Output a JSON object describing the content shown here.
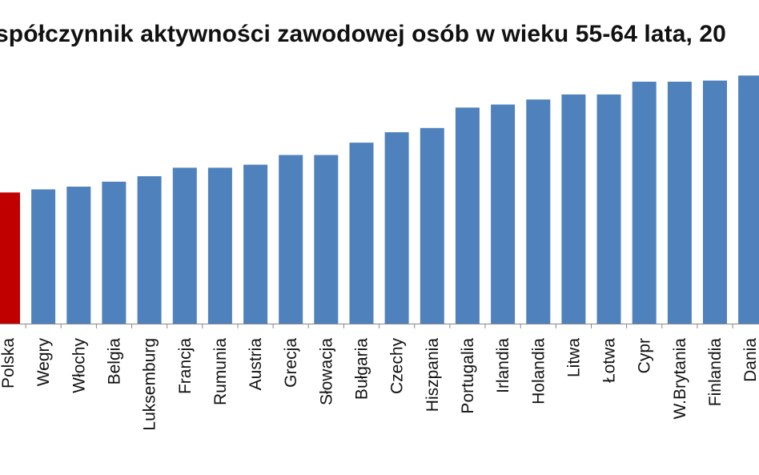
{
  "chart_data": {
    "type": "bar",
    "title": "spółczynnik aktywności zawodowej osób w wieku 55-64 lata, 20",
    "xlabel": "",
    "ylabel": "",
    "categories": [
      "Polska",
      "Wegry",
      "Włochy",
      "Belgia",
      "Luksemburg",
      "Francja",
      "Rumunia",
      "Austria",
      "Grecja",
      "Słowacja",
      "Bułgaria",
      "Czechy",
      "Hiszpania",
      "Portugalia",
      "Irlandia",
      "Holandia",
      "Litwa",
      "Łotwa",
      "Cypr",
      "W.Brytania",
      "Finlandia",
      "Dania"
    ],
    "values": [
      34.0,
      34.8,
      35.5,
      36.8,
      38.2,
      40.4,
      40.4,
      41.2,
      43.7,
      43.7,
      46.9,
      49.6,
      50.7,
      56.0,
      56.8,
      58.1,
      59.4,
      59.4,
      62.7,
      62.7,
      63.0,
      64.3
    ],
    "highlight_index": 0,
    "ylim": [
      0,
      76
    ],
    "grid": false,
    "colors": {
      "bar": "#4f81bd",
      "highlight": "#c00000",
      "axis": "#888888",
      "text": "#111111"
    }
  }
}
